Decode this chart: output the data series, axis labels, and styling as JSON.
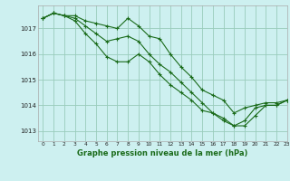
{
  "title": "Graphe pression niveau de la mer (hPa)",
  "bg_color": "#cdf0f0",
  "grid_color": "#99ccbb",
  "line_color": "#1a6b1a",
  "xlim": [
    -0.5,
    23
  ],
  "ylim": [
    1012.6,
    1017.9
  ],
  "yticks": [
    1013,
    1014,
    1015,
    1016,
    1017
  ],
  "xticks": [
    0,
    1,
    2,
    3,
    4,
    5,
    6,
    7,
    8,
    9,
    10,
    11,
    12,
    13,
    14,
    15,
    16,
    17,
    18,
    19,
    20,
    21,
    22,
    23
  ],
  "series1": {
    "x": [
      0,
      1,
      2,
      3,
      4,
      5,
      6,
      7,
      8,
      9,
      10,
      11,
      12,
      13,
      14,
      15,
      16,
      17,
      18,
      19,
      20,
      21,
      22,
      23
    ],
    "y": [
      1017.4,
      1017.6,
      1017.5,
      1017.5,
      1017.3,
      1017.2,
      1017.1,
      1017.0,
      1017.4,
      1017.1,
      1016.7,
      1016.6,
      1016.0,
      1015.5,
      1015.1,
      1014.6,
      1014.4,
      1014.2,
      1013.7,
      1013.9,
      1014.0,
      1014.1,
      1014.1,
      1014.2
    ]
  },
  "series2": {
    "x": [
      0,
      1,
      2,
      3,
      4,
      5,
      6,
      7,
      8,
      9,
      10,
      11,
      12,
      13,
      14,
      15,
      16,
      17,
      18,
      19,
      20,
      21,
      22,
      23
    ],
    "y": [
      1017.4,
      1017.6,
      1017.5,
      1017.4,
      1017.1,
      1016.8,
      1016.5,
      1016.6,
      1016.7,
      1016.5,
      1016.0,
      1015.6,
      1015.3,
      1014.9,
      1014.5,
      1014.1,
      1013.7,
      1013.4,
      1013.2,
      1013.4,
      1013.9,
      1014.0,
      1014.0,
      1014.2
    ]
  },
  "series3": {
    "x": [
      0,
      1,
      2,
      3,
      4,
      5,
      6,
      7,
      8,
      9,
      10,
      11,
      12,
      13,
      14,
      15,
      16,
      17,
      18,
      19,
      20,
      21,
      22,
      23
    ],
    "y": [
      1017.4,
      1017.6,
      1017.5,
      1017.3,
      1016.8,
      1016.4,
      1015.9,
      1015.7,
      1015.7,
      1016.0,
      1015.7,
      1015.2,
      1014.8,
      1014.5,
      1014.2,
      1013.8,
      1013.7,
      1013.5,
      1013.2,
      1013.2,
      1013.6,
      1014.0,
      1014.0,
      1014.2
    ]
  }
}
